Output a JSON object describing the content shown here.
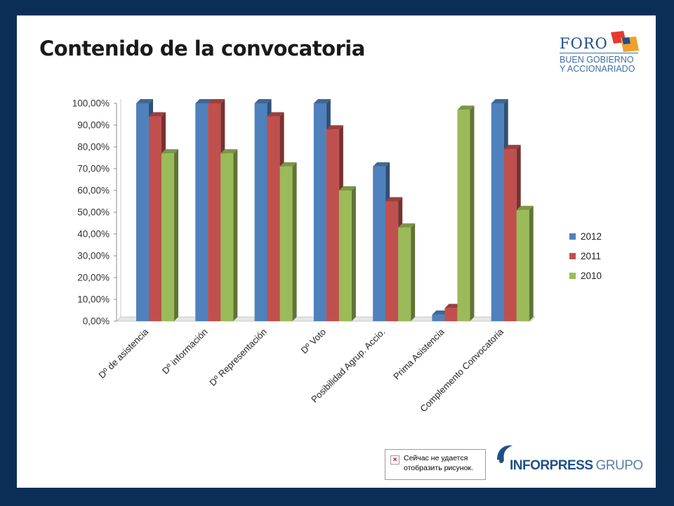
{
  "slide": {
    "title": "Contenido de la convocatoria"
  },
  "logos": {
    "foro": {
      "name": "FORO",
      "line1": "BUEN GOBIERNO",
      "line2": "Y ACCIONARIADO"
    },
    "inforpress": {
      "name": "INFORPRESS",
      "suffix": "GRUPO"
    }
  },
  "broken_image": {
    "message": "Сейчас не удается отобразить рисунок."
  },
  "colors": {
    "2012": "#4f81bd",
    "2011": "#c0504d",
    "2010": "#9bbb59",
    "background": "#0b2e57"
  },
  "chart_data": {
    "type": "bar",
    "title": "",
    "xlabel": "",
    "ylabel": "",
    "ylim": [
      0,
      100
    ],
    "y_ticks": [
      "0,00%",
      "10,00%",
      "20,00%",
      "30,00%",
      "40,00%",
      "50,00%",
      "60,00%",
      "70,00%",
      "80,00%",
      "90,00%",
      "100,00%"
    ],
    "categories": [
      "Dº de asistencia",
      "Dº información",
      "Dº Representación",
      "Dº Voto",
      "Posibilidad Agrup. Accio.",
      "Prima Asistencia",
      "Complemento Convocatoria"
    ],
    "series": [
      {
        "name": "2012",
        "values": [
          100,
          100,
          100,
          100,
          71,
          3,
          100
        ]
      },
      {
        "name": "2011",
        "values": [
          94,
          100,
          94,
          88,
          55,
          6,
          79
        ]
      },
      {
        "name": "2010",
        "values": [
          77,
          77,
          71,
          60,
          43,
          97,
          51
        ]
      }
    ],
    "legend": "right",
    "grid": false
  }
}
